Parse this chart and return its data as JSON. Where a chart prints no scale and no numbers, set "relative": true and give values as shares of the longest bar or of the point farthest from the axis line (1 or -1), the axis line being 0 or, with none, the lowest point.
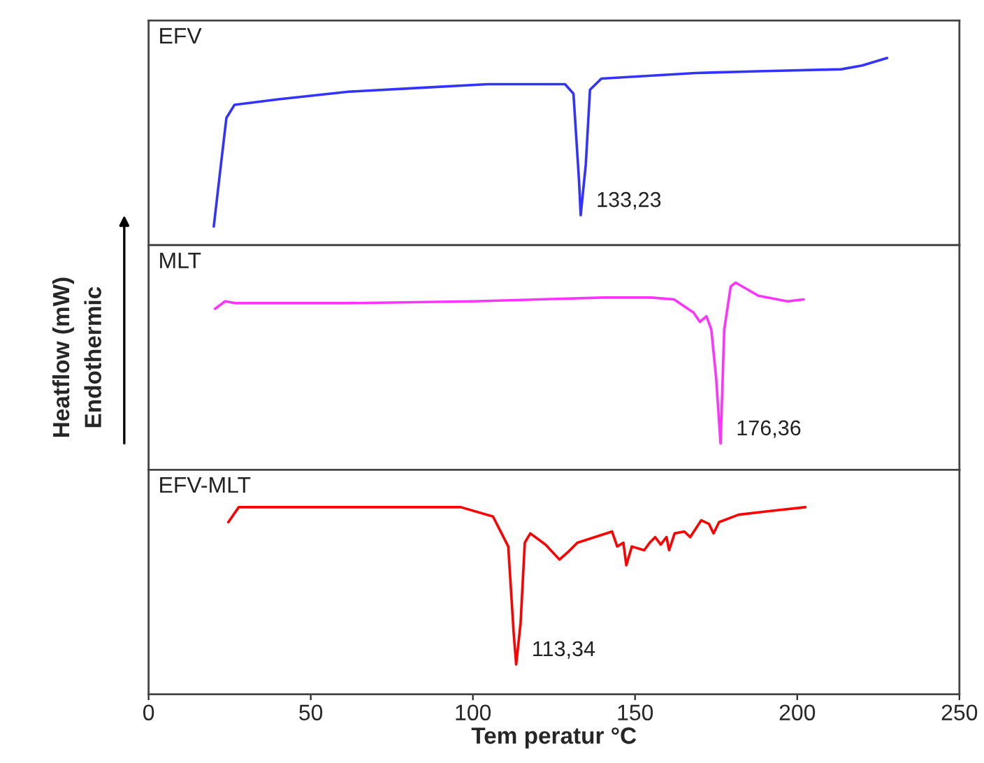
{
  "chart_data": [
    {
      "type": "line",
      "relative": true,
      "xlim": [
        0,
        250
      ],
      "xticks": [
        0,
        50,
        100,
        150,
        200,
        250
      ],
      "tick_labels": false,
      "legend": false,
      "grid": false,
      "series": [
        {
          "name": "EFV",
          "color": "#3333ff",
          "x": [
            20.1,
            22.3,
            24.0,
            26.5,
            40.2,
            61.6,
            83,
            104.5,
            128.4,
            131,
            132.7,
            133.23,
            134.8,
            136.1,
            139.6,
            168.7,
            190,
            213.6,
            220,
            227.7
          ],
          "values": [
            0.1,
            0.43,
            0.68,
            0.75,
            0.78,
            0.82,
            0.84,
            0.86,
            0.86,
            0.81,
            0.35,
            0.16,
            0.43,
            0.83,
            0.89,
            0.92,
            0.93,
            0.94,
            0.96,
            1
          ]
        }
      ],
      "annotations": [
        {
          "text": "133,23",
          "x": 133.23,
          "y": 0.16
        }
      ]
    },
    {
      "type": "line",
      "relative": true,
      "xlim": [
        0,
        250
      ],
      "xticks": [
        0,
        50,
        100,
        150,
        200,
        250
      ],
      "tick_labels": false,
      "legend": false,
      "grid": false,
      "ylabel": "Heatflow (mW)\nEndothermic",
      "series": [
        {
          "name": "MLT",
          "color": "#ff33ff",
          "x": [
            20.5,
            23.6,
            27,
            60,
            100,
            140,
            155,
            162,
            168,
            170,
            172,
            173.5,
            175,
            176.36,
            177.5,
            179.5,
            181,
            188,
            197,
            202
          ],
          "values": [
            0.86,
            0.9,
            0.89,
            0.89,
            0.9,
            0.92,
            0.92,
            0.91,
            0.84,
            0.79,
            0.82,
            0.75,
            0.49,
            0.14,
            0.75,
            0.98,
            1,
            0.93,
            0.9,
            0.91
          ]
        }
      ],
      "annotations": [
        {
          "text": "176,36",
          "x": 176.36,
          "y": 0.14
        }
      ]
    },
    {
      "type": "line",
      "relative": true,
      "xlim": [
        0,
        250
      ],
      "xticks": [
        0,
        50,
        100,
        150,
        200,
        250
      ],
      "tick_labels": "x",
      "legend": false,
      "grid": false,
      "xlabel": "Tem peratur °C",
      "series": [
        {
          "name": "EFV-MLT",
          "color": "#ff0000",
          "x": [
            24.6,
            27.8,
            96.3,
            106.2,
            110.9,
            112.6,
            113.34,
            114.7,
            116,
            117.7,
            122.4,
            126.7,
            129.3,
            132.2,
            142.9,
            144.5,
            146.4,
            147.3,
            149,
            152.8,
            154.5,
            156.2,
            157.9,
            159.7,
            160.5,
            162.2,
            165.2,
            167,
            170.4,
            172.8,
            174.2,
            175.9,
            181.9,
            191.8,
            202.5
          ],
          "values": [
            0.92,
            1,
            1,
            0.95,
            0.79,
            0.32,
            0.16,
            0.38,
            0.81,
            0.86,
            0.8,
            0.72,
            0.76,
            0.81,
            0.87,
            0.79,
            0.81,
            0.69,
            0.79,
            0.77,
            0.81,
            0.84,
            0.8,
            0.84,
            0.77,
            0.86,
            0.87,
            0.84,
            0.93,
            0.91,
            0.86,
            0.92,
            0.96,
            0.98,
            1
          ]
        }
      ],
      "annotations": [
        {
          "text": "113,34",
          "x": 113.34,
          "y": 0.16
        }
      ]
    }
  ]
}
